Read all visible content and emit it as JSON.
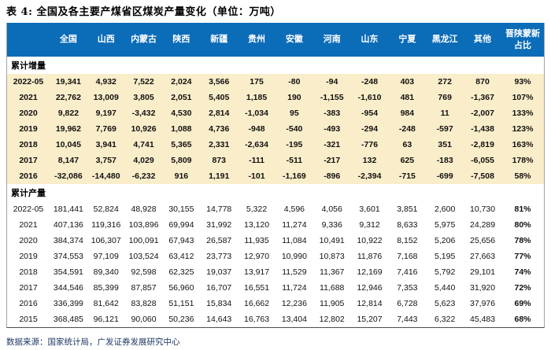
{
  "title": "表 4: 全国及各主要产煤省区煤炭产量变化（单位：万吨）",
  "source_note": "数据来源：国家统计局，广发证券发展研究中心",
  "colors": {
    "header_bg": "#0b6cb8",
    "header_text": "#ffffff",
    "stripe_bg": "#faeeca",
    "body_bg": "#ffffff",
    "title_text": "#000000",
    "source_text": "#1f3864",
    "side_border": "#a3a3a3",
    "bottom_border": "#4d4d4d"
  },
  "table": {
    "corner_label": "",
    "province_columns": [
      "全国",
      "山西",
      "内蒙古",
      "陕西",
      "新疆",
      "贵州",
      "安徽",
      "河南",
      "山东",
      "宁夏",
      "黑龙江",
      "其他"
    ],
    "ratio_column": {
      "line1": "晋陕蒙新",
      "line2": "占比"
    },
    "sections": [
      {
        "label": "累计增量",
        "striped": true,
        "rows": [
          {
            "period": "2022-05",
            "values": [
              "19,341",
              "4,932",
              "7,522",
              "2,024",
              "3,566",
              "175",
              "-80",
              "-94",
              "-248",
              "403",
              "272",
              "870"
            ],
            "ratio": "93%"
          },
          {
            "period": "2021",
            "values": [
              "22,762",
              "13,009",
              "3,805",
              "2,051",
              "5,405",
              "1,185",
              "190",
              "-1,155",
              "-1,610",
              "481",
              "769",
              "-1,367"
            ],
            "ratio": "107%"
          },
          {
            "period": "2020",
            "values": [
              "9,822",
              "9,197",
              "-3,432",
              "4,530",
              "2,814",
              "-1,034",
              "95",
              "-383",
              "-954",
              "984",
              "11",
              "-2,007"
            ],
            "ratio": "133%"
          },
          {
            "period": "2019",
            "values": [
              "19,962",
              "7,769",
              "10,926",
              "1,088",
              "4,736",
              "-948",
              "-540",
              "-493",
              "-294",
              "-248",
              "-597",
              "-1,438"
            ],
            "ratio": "123%"
          },
          {
            "period": "2018",
            "values": [
              "10,045",
              "3,941",
              "4,741",
              "5,365",
              "2,331",
              "-2,634",
              "-195",
              "-321",
              "-776",
              "63",
              "351",
              "-2,819"
            ],
            "ratio": "163%"
          },
          {
            "period": "2017",
            "values": [
              "8,147",
              "3,757",
              "4,029",
              "5,809",
              "873",
              "-111",
              "-511",
              "-217",
              "132",
              "625",
              "-183",
              "-6,055"
            ],
            "ratio": "178%"
          },
          {
            "period": "2016",
            "values": [
              "-32,086",
              "-14,480",
              "-6,232",
              "916",
              "1,191",
              "-101",
              "-1,169",
              "-896",
              "-2,394",
              "-715",
              "-699",
              "-7,508"
            ],
            "ratio": "58%"
          }
        ]
      },
      {
        "label": "累计产量",
        "striped": false,
        "rows": [
          {
            "period": "2022-05",
            "values": [
              "181,441",
              "52,824",
              "48,928",
              "30,155",
              "14,778",
              "5,322",
              "4,596",
              "4,056",
              "3,601",
              "3,851",
              "2,600",
              "10,730"
            ],
            "ratio": "81%"
          },
          {
            "period": "2021",
            "values": [
              "407,136",
              "119,316",
              "103,896",
              "69,994",
              "31,992",
              "13,120",
              "11,274",
              "9,336",
              "9,312",
              "8,633",
              "5,975",
              "24,289"
            ],
            "ratio": "80%"
          },
          {
            "period": "2020",
            "values": [
              "384,374",
              "106,307",
              "100,091",
              "67,943",
              "26,587",
              "11,935",
              "11,084",
              "10,491",
              "10,922",
              "8,152",
              "5,206",
              "25,656"
            ],
            "ratio": "78%"
          },
          {
            "period": "2019",
            "values": [
              "374,553",
              "97,109",
              "103,524",
              "63,412",
              "23,773",
              "12,970",
              "10,990",
              "10,873",
              "11,876",
              "7,168",
              "5,195",
              "27,663"
            ],
            "ratio": "77%"
          },
          {
            "period": "2018",
            "values": [
              "354,591",
              "89,340",
              "92,598",
              "62,325",
              "19,037",
              "13,917",
              "11,529",
              "11,367",
              "12,169",
              "7,416",
              "5,792",
              "29,101"
            ],
            "ratio": "74%"
          },
          {
            "period": "2017",
            "values": [
              "344,546",
              "85,399",
              "87,857",
              "56,960",
              "16,707",
              "16,551",
              "11,724",
              "11,688",
              "12,946",
              "7,353",
              "5,440",
              "31,920"
            ],
            "ratio": "72%"
          },
          {
            "period": "2016",
            "values": [
              "336,399",
              "81,642",
              "83,828",
              "51,151",
              "15,834",
              "16,662",
              "12,236",
              "11,905",
              "12,814",
              "6,728",
              "5,623",
              "37,976"
            ],
            "ratio": "69%"
          },
          {
            "period": "2015",
            "values": [
              "368,485",
              "96,121",
              "90,060",
              "50,236",
              "14,643",
              "16,763",
              "13,404",
              "12,802",
              "15,207",
              "7,443",
              "6,322",
              "45,483"
            ],
            "ratio": "68%"
          }
        ]
      }
    ]
  }
}
